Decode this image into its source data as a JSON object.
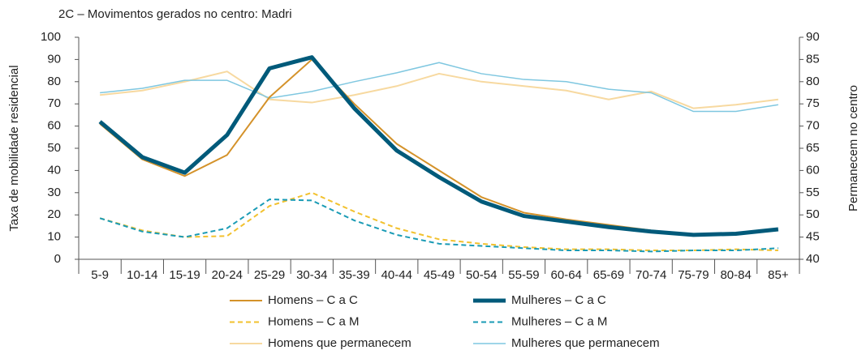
{
  "chart_data": {
    "type": "line",
    "title": "2C – Movimentos gerados no centro: Madri",
    "ylabel": "Taxa de mobilidade residencial",
    "y2label": "Permanecem no centro",
    "categories": [
      "5-9",
      "10-14",
      "15-19",
      "20-24",
      "25-29",
      "30-34",
      "35-39",
      "40-44",
      "45-49",
      "50-54",
      "55-59",
      "60-64",
      "65-69",
      "70-74",
      "75-79",
      "80-84",
      "85+"
    ],
    "ylim": [
      0,
      100
    ],
    "yticks": [
      0,
      10,
      20,
      30,
      40,
      50,
      60,
      70,
      80,
      90,
      100
    ],
    "y2lim": [
      40,
      90
    ],
    "y2ticks": [
      40,
      45,
      50,
      55,
      60,
      65,
      70,
      75,
      80,
      85,
      90
    ],
    "grid": false,
    "series": [
      {
        "name": "Homens – C a C",
        "color": "#d4922a",
        "width": 2,
        "dash": false,
        "values": [
          61,
          45,
          37.5,
          47,
          73,
          90,
          70,
          52,
          40,
          28,
          21,
          18,
          15.5,
          13,
          11,
          11.5,
          13
        ]
      },
      {
        "name": "Mulheres – C a C",
        "color": "#005a7a",
        "width": 5,
        "dash": false,
        "values": [
          62,
          46,
          39,
          56,
          86,
          91,
          68,
          49,
          37,
          26,
          19.5,
          17,
          14.5,
          12.5,
          11,
          11.5,
          13.5
        ]
      },
      {
        "name": "Homens – C a M",
        "color": "#f2c12e",
        "width": 2,
        "dash": true,
        "values": [
          18.5,
          13,
          10,
          10.5,
          24,
          30,
          21.5,
          14,
          9,
          7,
          5.5,
          4.5,
          4.5,
          4,
          4,
          4.5,
          4
        ]
      },
      {
        "name": "Mulheres – C a M",
        "color": "#1a9bb5",
        "width": 2,
        "dash": true,
        "values": [
          18.5,
          12.5,
          10,
          14,
          27,
          26.5,
          17.5,
          11,
          7,
          6,
          5,
          4,
          4,
          3.5,
          4,
          4,
          5
        ]
      },
      {
        "name": "Homens que permanecem",
        "color": "#f7d9a0",
        "width": 2,
        "dash": false,
        "axis": "y2",
        "values": [
          77,
          78,
          80,
          82.3,
          76,
          75.3,
          77,
          79,
          81.8,
          80,
          79,
          78,
          76,
          77.8,
          74,
          74.8,
          76
        ]
      },
      {
        "name": "Mulheres que permanecem",
        "color": "#7fc7e0",
        "width": 1.5,
        "dash": false,
        "axis": "y2",
        "values": [
          77.5,
          78.5,
          80.3,
          80.3,
          76.3,
          77.8,
          80,
          82,
          84.3,
          81.8,
          80.5,
          80,
          78.3,
          77.5,
          73.3,
          73.3,
          74.8
        ]
      }
    ]
  }
}
